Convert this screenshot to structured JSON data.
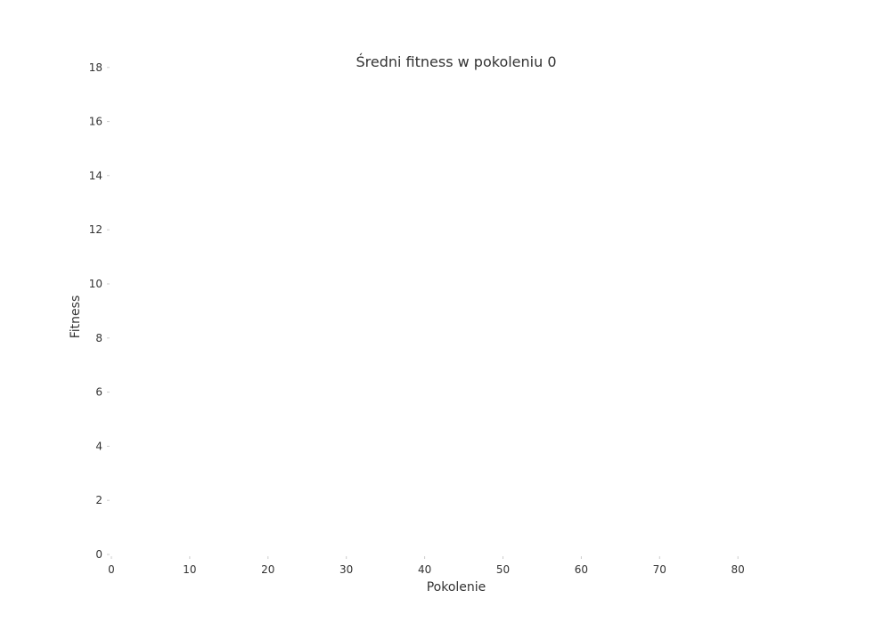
{
  "chart_data": {
    "type": "line",
    "title": "Średni fitness w pokoleniu 0",
    "xlabel": "Pokolenie",
    "ylabel": "Fitness",
    "xlim": [
      0,
      88
    ],
    "ylim": [
      0,
      19
    ],
    "xticks": [
      0,
      10,
      20,
      30,
      40,
      50,
      60,
      70,
      80
    ],
    "yticks": [
      0,
      2,
      4,
      6,
      8,
      10,
      12,
      14,
      16,
      18
    ],
    "grid": false,
    "series": [
      {
        "x": [],
        "y": []
      }
    ]
  }
}
